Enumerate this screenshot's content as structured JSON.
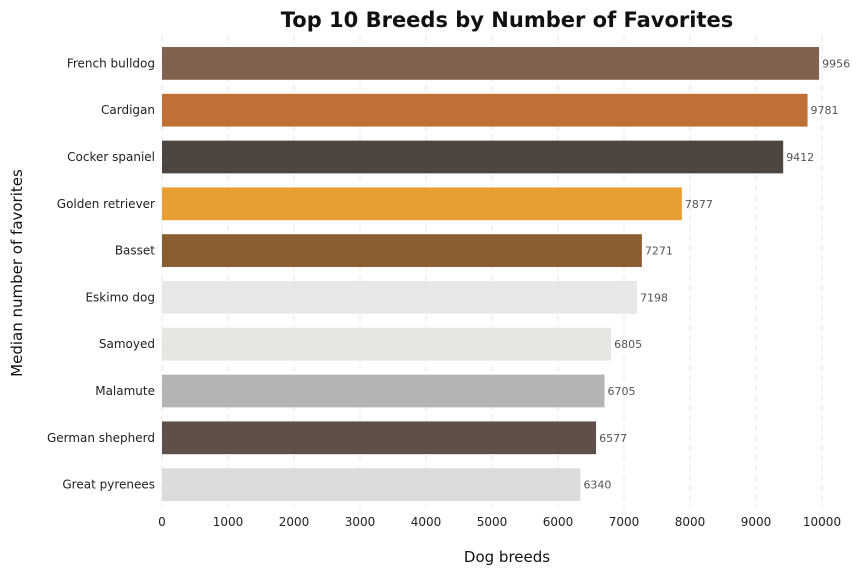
{
  "chart_data": {
    "type": "bar",
    "orientation": "horizontal",
    "title": "Top 10 Breeds by Number of Favorites",
    "xlabel": "Dog breeds",
    "ylabel": "Median number of favorites",
    "xlim": [
      0,
      10000
    ],
    "xticks": [
      0,
      1000,
      2000,
      3000,
      4000,
      5000,
      6000,
      7000,
      8000,
      9000,
      10000
    ],
    "grid": true,
    "categories": [
      "French bulldog",
      "Cardigan",
      "Cocker spaniel",
      "Golden retriever",
      "Basset",
      "Eskimo dog",
      "Samoyed",
      "Malamute",
      "German shepherd",
      "Great pyrenees"
    ],
    "values": [
      9956,
      9781,
      9412,
      7877,
      7271,
      7198,
      6805,
      6705,
      6577,
      6340
    ],
    "colors": [
      "#7f6350",
      "#c07034",
      "#4d4540",
      "#e79f33",
      "#8a5e31",
      "#e8e8e8",
      "#e7e7e2",
      "#b4b4b4",
      "#5e5048",
      "#dcdcdc"
    ]
  }
}
